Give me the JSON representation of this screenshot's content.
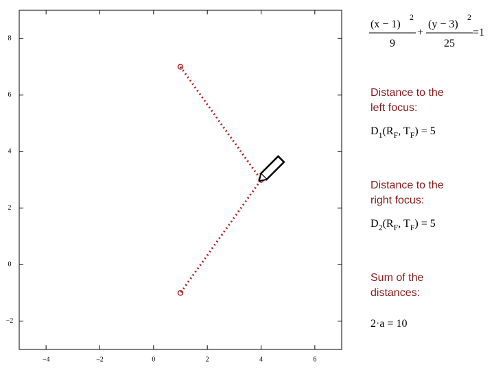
{
  "chart_data": {
    "type": "line",
    "x": [
      1,
      4,
      1
    ],
    "series": [
      {
        "color": "#b22222",
        "values": [
          7,
          3,
          -1
        ]
      }
    ],
    "xlim": [
      -5,
      7
    ],
    "ylim": [
      -3,
      9
    ],
    "xticks": [
      {
        "value": -4,
        "label": "−4"
      },
      {
        "value": -2,
        "label": "−2"
      },
      0,
      2,
      4,
      6
    ],
    "yticks": [
      {
        "value": -2,
        "label": "−2"
      },
      0,
      2,
      4,
      6,
      8
    ]
  },
  "panel": {
    "equation": [
      "(x − 1)",
      "2",
      "9",
      "+",
      "(y − 3)",
      "2",
      "25",
      "=1"
    ],
    "left_label": [
      "Distance to the",
      "left focus:"
    ],
    "d1": [
      "D",
      "1",
      "(R",
      "F",
      ", T",
      "F",
      ")",
      " = 5"
    ],
    "right_label": [
      "Distance to the",
      "right focus:"
    ],
    "d2": [
      "D",
      "2",
      "(R",
      "F",
      ", T",
      "F",
      ")",
      " = 5"
    ],
    "sum_label": [
      "Sum of the",
      "distances:"
    ],
    "sum": "2·a = 10"
  }
}
